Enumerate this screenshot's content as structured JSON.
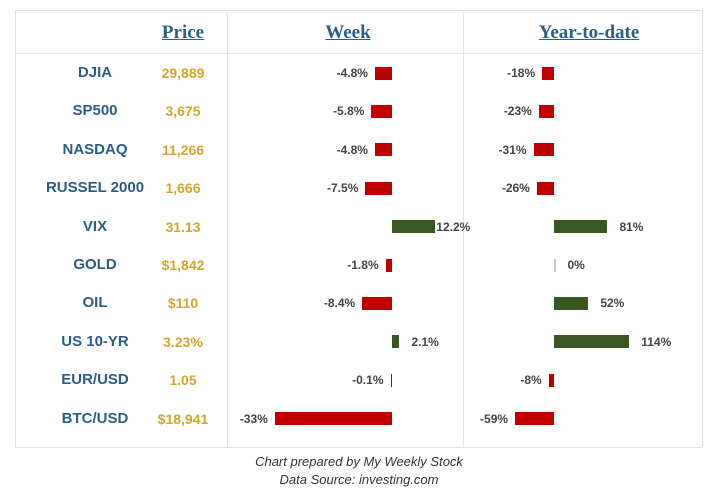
{
  "headers": {
    "price": "Price",
    "week": "Week",
    "ytd": "Year-to-date"
  },
  "colors": {
    "negative": "#c00000",
    "positive": "#385723",
    "name": "#2b5c8a",
    "price": "#d4a52c"
  },
  "chart_data": {
    "type": "bar",
    "categories": [
      "DJIA",
      "SP500",
      "NASDAQ",
      "RUSSEL 2000",
      "VIX",
      "GOLD",
      "OIL",
      "US 10-YR",
      "EUR/USD",
      "BTC/USD"
    ],
    "prices": [
      "29,889",
      "3,675",
      "11,266",
      "1,666",
      "31.13",
      "$1,842",
      "$110",
      "3.23%",
      "1.05",
      "$18,941"
    ],
    "series": [
      {
        "name": "Week",
        "values": [
          -4.8,
          -5.8,
          -4.8,
          -7.5,
          12.2,
          -1.8,
          -8.4,
          2.1,
          -0.1,
          -33
        ],
        "labels": [
          "-4.8%",
          "-5.8%",
          "-4.8%",
          "-7.5%",
          "12.2%",
          "-1.8%",
          "-8.4%",
          "2.1%",
          "-0.1%",
          "-33%"
        ]
      },
      {
        "name": "Year-to-date",
        "values": [
          -18,
          -23,
          -31,
          -26,
          81,
          0,
          52,
          114,
          -8,
          -59
        ],
        "labels": [
          "-18%",
          "-23%",
          "-31%",
          "-26%",
          "81%",
          "0%",
          "52%",
          "114%",
          "-8%",
          "-59%"
        ]
      }
    ]
  },
  "footer": {
    "line1": "Chart prepared by My Weekly Stock",
    "line2": "Data Source: investing.com"
  }
}
